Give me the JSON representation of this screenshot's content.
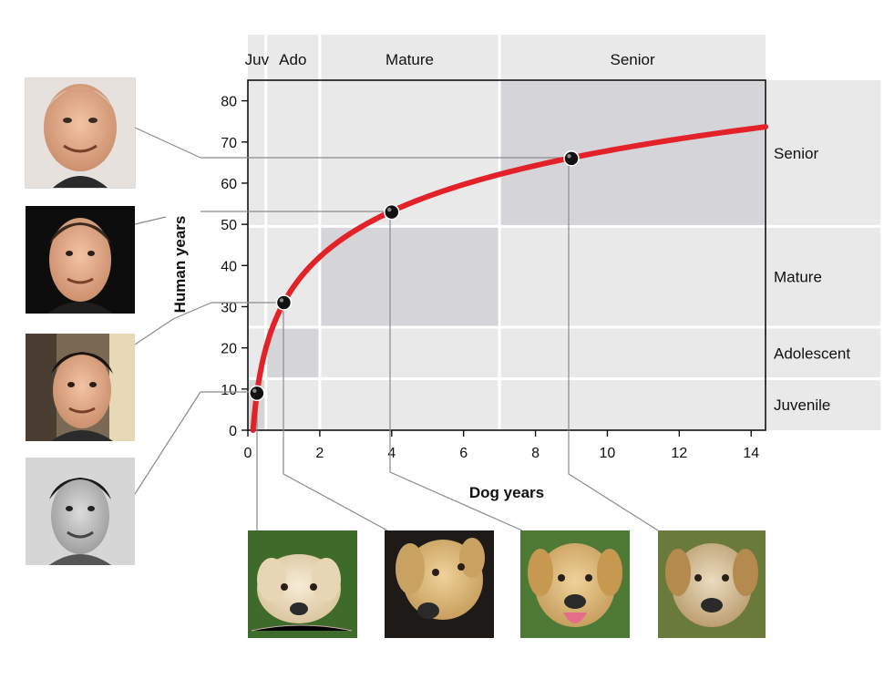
{
  "chart_data": {
    "type": "line",
    "xlabel": "Dog years",
    "ylabel": "Human years",
    "xlim": [
      0,
      14.4
    ],
    "ylim": [
      0,
      85
    ],
    "x_ticks": [
      "0",
      "2",
      "4",
      "6",
      "8",
      "10",
      "12",
      "14"
    ],
    "y_ticks": [
      "0",
      "10",
      "20",
      "30",
      "40",
      "50",
      "60",
      "70",
      "80"
    ],
    "curve_formula": "human = 16 * ln(dog) + 31",
    "curve_color": "#e32128",
    "dog_stages": [
      {
        "label": "Juv",
        "x_start": 0,
        "x_end": 0.5
      },
      {
        "label": "Ado",
        "x_start": 0.5,
        "x_end": 2
      },
      {
        "label": "Mature",
        "x_start": 2,
        "x_end": 7
      },
      {
        "label": "Senior",
        "x_start": 7,
        "x_end": 14.4
      }
    ],
    "human_stages": [
      {
        "label": "Senior",
        "y_start": 49.5,
        "y_end": 85
      },
      {
        "label": "Mature",
        "y_start": 25,
        "y_end": 49.5
      },
      {
        "label": "Adolescent",
        "y_start": 12.5,
        "y_end": 25
      },
      {
        "label": "Juvenile",
        "y_start": 0,
        "y_end": 12.5
      }
    ],
    "overlap_regions": [
      {
        "x_start": 0,
        "x_end": 0.5,
        "y_start": 0,
        "y_end": 12.5
      },
      {
        "x_start": 0.5,
        "x_end": 2,
        "y_start": 12.5,
        "y_end": 25
      },
      {
        "x_start": 2,
        "x_end": 7,
        "y_start": 25,
        "y_end": 49.5
      },
      {
        "x_start": 7,
        "x_end": 14.4,
        "y_start": 49.5,
        "y_end": 85
      }
    ],
    "points": [
      {
        "x": 0.25,
        "y": 9
      },
      {
        "x": 1,
        "y": 31
      },
      {
        "x": 4,
        "y": 53
      },
      {
        "x": 9,
        "y": 66
      }
    ]
  }
}
